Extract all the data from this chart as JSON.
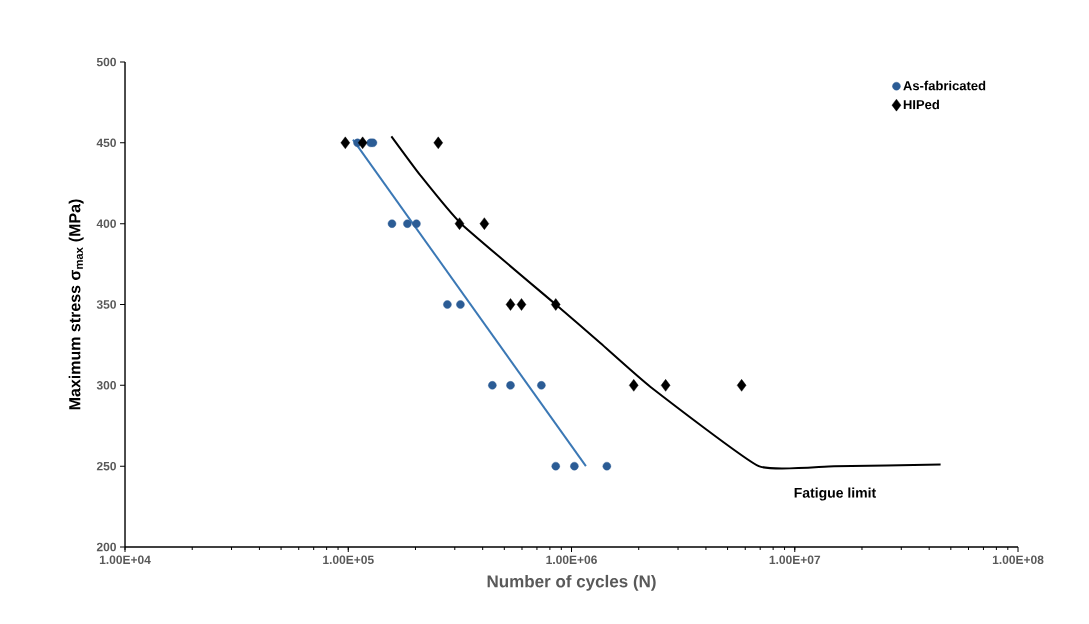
{
  "chart_data": {
    "type": "scatter",
    "xlabel": "Number of cycles (N)",
    "ylabel": "Maximum stress σ$_{max}$ (MPa)",
    "log": "x",
    "xlim": [
      10000,
      100000000
    ],
    "ylim": [
      200,
      500
    ],
    "xticks": [
      {
        "value": 10000,
        "label": "1.00E+04"
      },
      {
        "value": 100000,
        "label": "1.00E+05"
      },
      {
        "value": 1000000,
        "label": "1.00E+06"
      },
      {
        "value": 10000000,
        "label": "1.00E+07"
      },
      {
        "value": 100000000,
        "label": "1.00E+08"
      }
    ],
    "yticks": [
      200,
      250,
      300,
      350,
      400,
      450,
      500
    ],
    "grid": false,
    "legend": "top right",
    "annotations": [
      "Fatigue limit"
    ],
    "series": [
      {
        "name": "As-fabricated",
        "marker": "circle",
        "color": "#2b5c95",
        "x": [
          110000,
          126000,
          129000,
          157000,
          184000,
          202000,
          278000,
          318000,
          442000,
          533000,
          733000,
          850000,
          1030000,
          1440000
        ],
        "values": [
          450,
          450,
          450,
          400,
          400,
          400,
          350,
          350,
          300,
          300,
          300,
          250,
          250,
          250
        ]
      },
      {
        "name": "HIPed",
        "marker": "diamond",
        "color": "#000000",
        "x": [
          97000,
          116000,
          253000,
          315000,
          407000,
          533000,
          597000,
          850000,
          1900000,
          2640000,
          5780000
        ],
        "values": [
          450,
          450,
          450,
          400,
          400,
          350,
          350,
          350,
          300,
          300,
          300
        ]
      },
      {
        "type": "line",
        "line_style": "solid",
        "color": "#3b78b5",
        "x": [
          105000,
          1160000
        ],
        "values": [
          452,
          250
        ]
      },
      {
        "type": "line",
        "line_style": "solid",
        "color": "#000000",
        "x": [
          156000,
          210000,
          320000,
          850000,
          1350000,
          2260000,
          6900000,
          15000000,
          45000000
        ],
        "values": [
          454,
          430,
          400,
          350,
          326,
          299,
          250,
          250,
          251
        ]
      }
    ]
  }
}
